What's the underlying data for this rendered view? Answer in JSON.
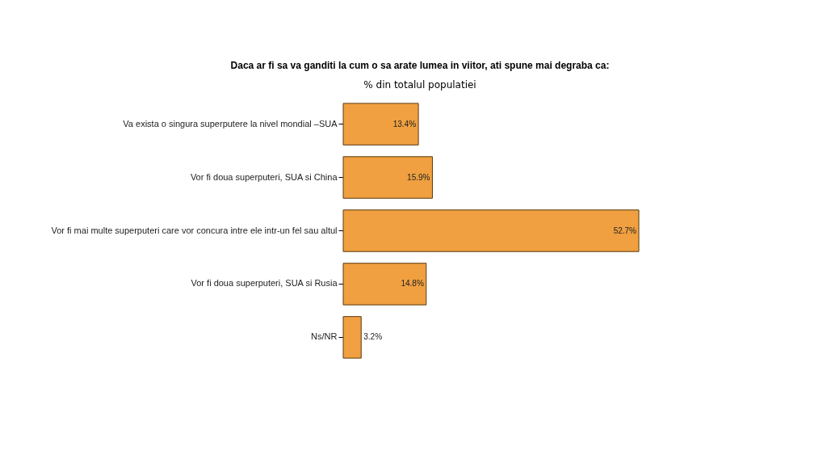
{
  "chart_data": {
    "type": "bar",
    "orientation": "horizontal",
    "title": "Daca ar fi sa va ganditi la cum o sa arate lumea in viitor, ati spune mai degraba ca:",
    "subtitle": "% din totalul populatiei",
    "categories": [
      "Va exista o singura superputere la nivel mondial –SUA",
      "Vor fi doua superputeri, SUA si China",
      "Vor fi mai multe superputeri care vor concura intre ele intr-un fel sau altul",
      "Vor fi doua superputeri, SUA si Rusia",
      "Ns/NR"
    ],
    "values": [
      13.4,
      15.9,
      52.7,
      14.8,
      3.2
    ],
    "value_labels": [
      "13.4%",
      "15.9%",
      "52.7%",
      "14.8%",
      "3.2%"
    ],
    "color": "#f0a040"
  }
}
